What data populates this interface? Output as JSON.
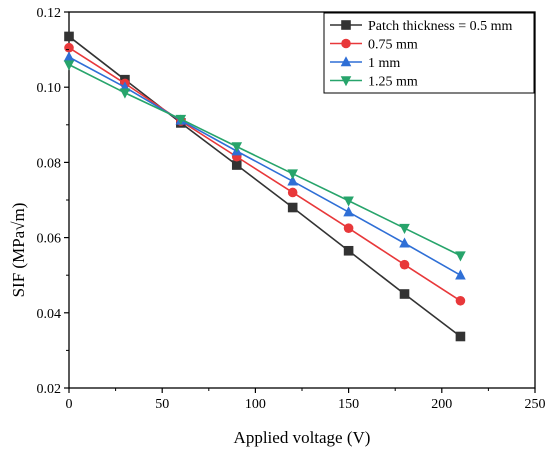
{
  "chart_data": {
    "type": "line",
    "xlabel": "Applied voltage (V)",
    "ylabel": "SIF (MPa√m)",
    "xlim": [
      0,
      250
    ],
    "ylim": [
      0.02,
      0.12
    ],
    "xticks": [
      0,
      50,
      100,
      150,
      200,
      250
    ],
    "yticks": [
      0.02,
      0.04,
      0.06,
      0.08,
      0.1,
      0.12
    ],
    "xtick_labels": [
      "0",
      "50",
      "100",
      "150",
      "200",
      "250"
    ],
    "ytick_labels": [
      "0.02",
      "0.04",
      "0.06",
      "0.08",
      "0.10",
      "0.12"
    ],
    "grid": false,
    "legend_position": "top-right",
    "x": [
      0,
      30,
      60,
      90,
      120,
      150,
      180,
      210
    ],
    "series": [
      {
        "name": "Patch thickness = 0.5 mm",
        "marker": "square",
        "color": "#333333",
        "values": [
          0.1135,
          0.102,
          0.0905,
          0.0793,
          0.068,
          0.0565,
          0.045,
          0.0337
        ]
      },
      {
        "name": "0.75 mm",
        "marker": "circle",
        "color": "#e8383a",
        "values": [
          0.1105,
          0.101,
          0.091,
          0.0815,
          0.072,
          0.0625,
          0.0528,
          0.0432
        ]
      },
      {
        "name": "1 mm",
        "marker": "triangle-up",
        "color": "#2f6fd6",
        "values": [
          0.108,
          0.1,
          0.0912,
          0.083,
          0.075,
          0.0668,
          0.0585,
          0.05
        ]
      },
      {
        "name": "1.25 mm",
        "marker": "triangle-down",
        "color": "#27a46b",
        "values": [
          0.106,
          0.0985,
          0.0915,
          0.0842,
          0.077,
          0.0698,
          0.0625,
          0.0552
        ]
      }
    ]
  }
}
